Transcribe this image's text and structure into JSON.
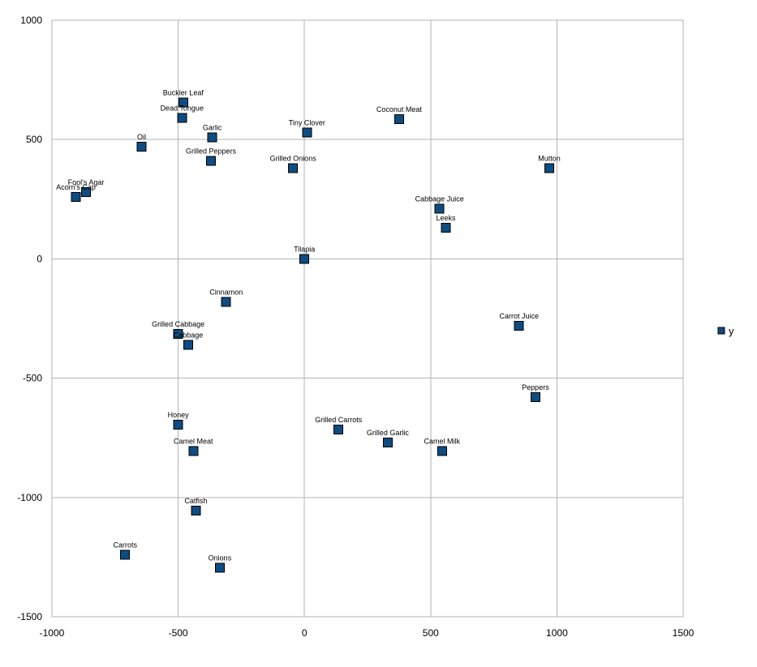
{
  "chart_data": {
    "type": "scatter",
    "title": "",
    "xlabel": "",
    "ylabel": "",
    "xlim": [
      -1000,
      1500
    ],
    "ylim": [
      -1500,
      1000
    ],
    "x_ticks": [
      -1000,
      -500,
      0,
      500,
      1000,
      1500
    ],
    "y_ticks": [
      -1500,
      -1000,
      -500,
      0,
      500,
      1000
    ],
    "x_tick_labels": [
      "-1000",
      "-500",
      "0",
      "500",
      "1000",
      "1500"
    ],
    "y_tick_labels": [
      "-1500",
      "-1000",
      "-500",
      "0",
      "500",
      "1000"
    ],
    "grid": true,
    "legend_position": "right",
    "marker_color": "#0f4c81",
    "series": [
      {
        "name": "y",
        "points": [
          {
            "label": "Buckler Leaf",
            "x": -480,
            "y": 655
          },
          {
            "label": "Dead Tongue",
            "x": -485,
            "y": 590
          },
          {
            "label": "Garlic",
            "x": -365,
            "y": 510
          },
          {
            "label": "Oil",
            "x": -645,
            "y": 470
          },
          {
            "label": "Grilled Peppers",
            "x": -370,
            "y": 410
          },
          {
            "label": "Tiny Clover",
            "x": 10,
            "y": 530
          },
          {
            "label": "Coconut Meat",
            "x": 375,
            "y": 585
          },
          {
            "label": "Grilled Onions",
            "x": -45,
            "y": 380
          },
          {
            "label": "Mutton",
            "x": 970,
            "y": 380
          },
          {
            "label": "Fool's Agar",
            "x": -865,
            "y": 280
          },
          {
            "label": "Acorn's Cap",
            "x": -905,
            "y": 260
          },
          {
            "label": "Cabbage Juice",
            "x": 535,
            "y": 210
          },
          {
            "label": "Leeks",
            "x": 560,
            "y": 130
          },
          {
            "label": "Tilapia",
            "x": 0,
            "y": 0
          },
          {
            "label": "Cinnamon",
            "x": -310,
            "y": -180
          },
          {
            "label": "Carrot Juice",
            "x": 850,
            "y": -280
          },
          {
            "label": "Grilled Cabbage",
            "x": -500,
            "y": -315
          },
          {
            "label": "Cabbage",
            "x": -460,
            "y": -360
          },
          {
            "label": "Peppers",
            "x": 915,
            "y": -580
          },
          {
            "label": "Honey",
            "x": -500,
            "y": -695
          },
          {
            "label": "Grilled Carrots",
            "x": 135,
            "y": -715
          },
          {
            "label": "Grilled Garlic",
            "x": 330,
            "y": -770
          },
          {
            "label": "Camel Meat",
            "x": -440,
            "y": -805
          },
          {
            "label": "Camel Milk",
            "x": 545,
            "y": -805
          },
          {
            "label": "Catfish",
            "x": -430,
            "y": -1055
          },
          {
            "label": "Carrots",
            "x": -710,
            "y": -1240
          },
          {
            "label": "Onions",
            "x": -335,
            "y": -1295
          }
        ]
      }
    ]
  }
}
